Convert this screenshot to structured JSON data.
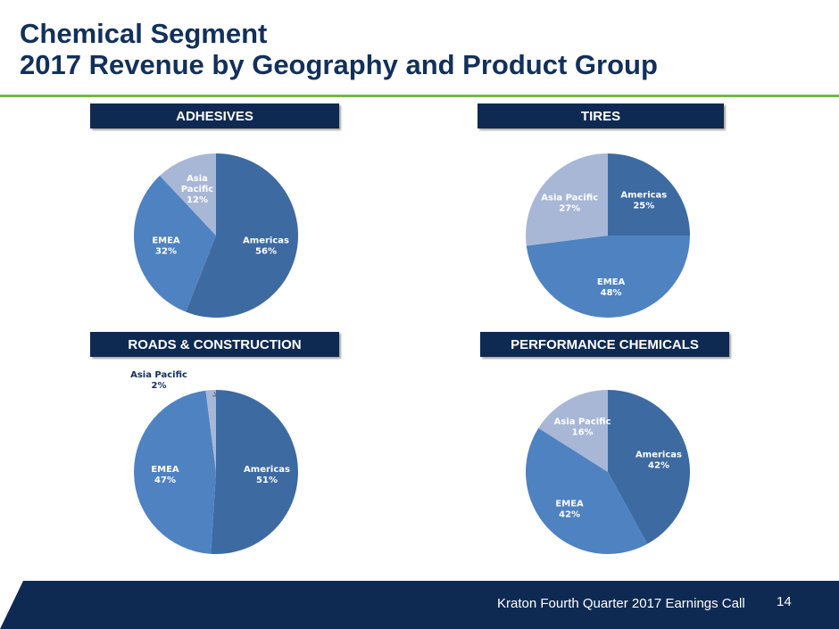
{
  "slide": {
    "title_line1": "Chemical Segment",
    "title_line2": "2017 Revenue by Geography and Product Group",
    "footer_text": "Kraton Fourth Quarter 2017 Earnings Call",
    "page_number": "14"
  },
  "colors": {
    "title": "#12305a",
    "accent_rule": "#7ab648",
    "header_bg": "#0f2a52",
    "americas": "#3d6aa1",
    "emea": "#4f82c0",
    "asia_pacific": "#a8b7d6",
    "footer_bg": "#0f2a52"
  },
  "chart_data": [
    {
      "type": "pie",
      "title": "ADHESIVES",
      "slices": [
        {
          "label": "Americas",
          "value": 56,
          "value_label": "56%"
        },
        {
          "label": "EMEA",
          "value": 32,
          "value_label": "32%"
        },
        {
          "label": "Asia Pacific",
          "value": 12,
          "value_label": "12%"
        }
      ]
    },
    {
      "type": "pie",
      "title": "TIRES",
      "slices": [
        {
          "label": "Americas",
          "value": 25,
          "value_label": "25%"
        },
        {
          "label": "EMEA",
          "value": 48,
          "value_label": "48%"
        },
        {
          "label": "Asia Pacific",
          "value": 27,
          "value_label": "27%"
        }
      ]
    },
    {
      "type": "pie",
      "title": "ROADS & CONSTRUCTION",
      "slices": [
        {
          "label": "Americas",
          "value": 51,
          "value_label": "51%"
        },
        {
          "label": "EMEA",
          "value": 47,
          "value_label": "47%"
        },
        {
          "label": "Asia Pacific",
          "value": 2,
          "value_label": "2%"
        }
      ]
    },
    {
      "type": "pie",
      "title": "PERFORMANCE CHEMICALS",
      "slices": [
        {
          "label": "Americas",
          "value": 42,
          "value_label": "42%"
        },
        {
          "label": "EMEA",
          "value": 42,
          "value_label": "42%"
        },
        {
          "label": "Asia Pacific",
          "value": 16,
          "value_label": "16%"
        }
      ]
    }
  ]
}
